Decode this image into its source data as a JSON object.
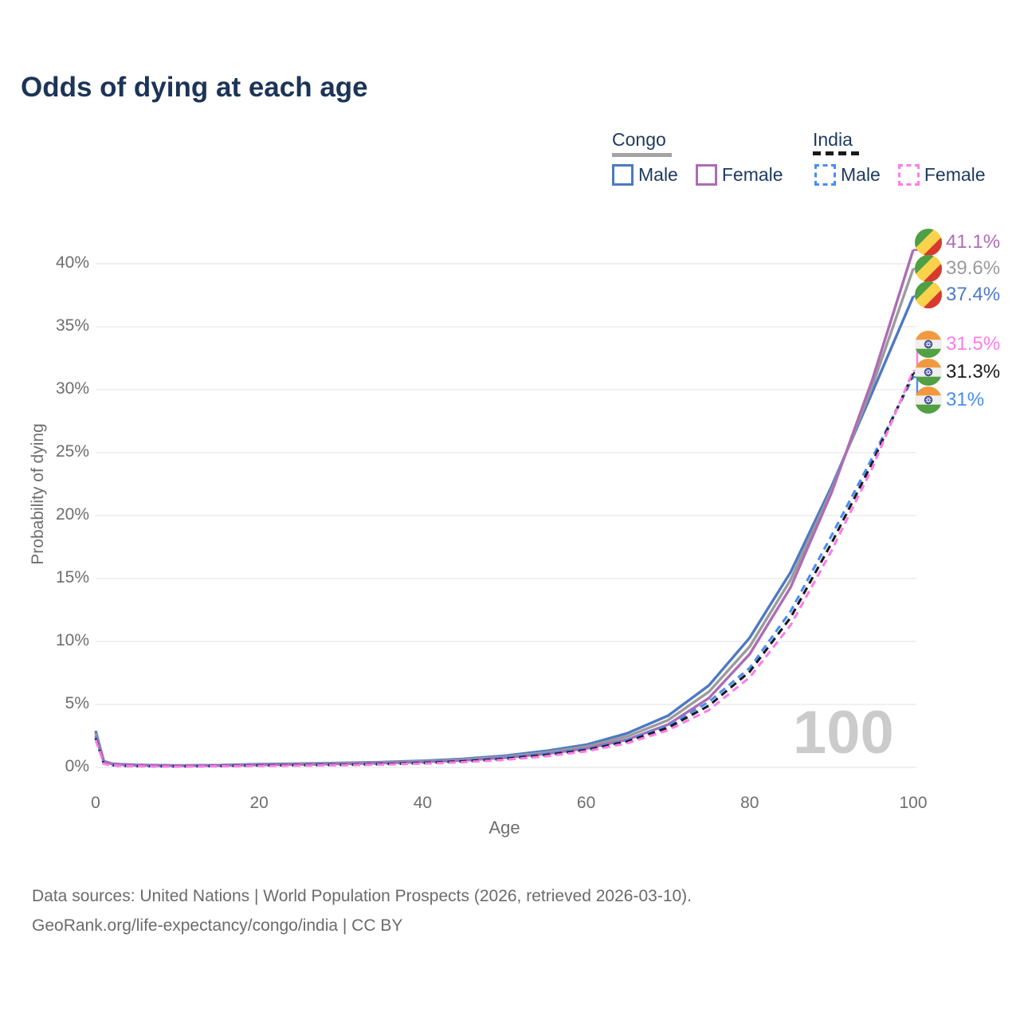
{
  "title": "Odds of dying at each age",
  "watermark": "100",
  "legend": {
    "congo": {
      "label": "Congo",
      "male": "Male",
      "female": "Female"
    },
    "india": {
      "label": "India",
      "male": "Male",
      "female": "Female"
    }
  },
  "footer": {
    "line1": "Data sources: United Nations | World Population Prospects (2026, retrieved 2026-03-10).",
    "line2": "GeoRank.org/life-expectancy/congo/india | CC BY"
  },
  "colors": {
    "congo_male": "#4d79c3",
    "congo_female": "#ad6cb5",
    "congo_both": "#9b9b9b",
    "india_male": "#4a8cf2",
    "india_female": "#ff7be8",
    "india_both": "#1a1a1a",
    "title_text": "#1c3457",
    "axis_text": "#6e6e6e",
    "gridline": "#ececec",
    "watermark": "#cbcbcb"
  },
  "chart_data": {
    "type": "line",
    "title": "Odds of dying at each age",
    "xlabel": "Age",
    "ylabel": "Probability of dying",
    "xlim": [
      0,
      100
    ],
    "ylim": [
      0,
      40
    ],
    "xticks": [
      0,
      20,
      40,
      60,
      80,
      100
    ],
    "xticklabels": [
      "0",
      "20",
      "40",
      "60",
      "80",
      "100"
    ],
    "yticks": [
      0,
      5,
      10,
      15,
      20,
      25,
      30,
      35,
      40
    ],
    "yticklabels": [
      "0%",
      "5%",
      "10%",
      "15%",
      "20%",
      "25%",
      "30%",
      "35%",
      "40%"
    ],
    "grid": "horizontal-only",
    "legend_position": "top-right",
    "x": [
      0,
      1,
      2,
      3,
      5,
      10,
      15,
      20,
      25,
      30,
      35,
      40,
      45,
      50,
      55,
      60,
      65,
      70,
      75,
      80,
      85,
      90,
      95,
      100
    ],
    "series": [
      {
        "name": "Congo Male",
        "country": "Congo",
        "sex": "male",
        "dash": "solid",
        "color": "#4d79c3",
        "end_label": "37.4%",
        "values": [
          2.9,
          0.5,
          0.3,
          0.25,
          0.2,
          0.15,
          0.18,
          0.25,
          0.3,
          0.35,
          0.42,
          0.52,
          0.68,
          0.92,
          1.3,
          1.8,
          2.7,
          4.1,
          6.5,
          10.3,
          15.5,
          22.3,
          29.8,
          37.4
        ]
      },
      {
        "name": "Congo Both sexes",
        "country": "Congo",
        "sex": "both",
        "dash": "solid",
        "color": "#9b9b9b",
        "end_label": "39.6%",
        "values": [
          2.7,
          0.48,
          0.29,
          0.24,
          0.18,
          0.14,
          0.17,
          0.22,
          0.27,
          0.32,
          0.38,
          0.47,
          0.62,
          0.84,
          1.18,
          1.65,
          2.45,
          3.75,
          6.0,
          9.6,
          14.9,
          22.0,
          30.3,
          39.6
        ]
      },
      {
        "name": "Congo Female",
        "country": "Congo",
        "sex": "female",
        "dash": "solid",
        "color": "#ad6cb5",
        "end_label": "41.1%",
        "values": [
          2.5,
          0.45,
          0.28,
          0.22,
          0.17,
          0.13,
          0.15,
          0.2,
          0.24,
          0.28,
          0.34,
          0.43,
          0.56,
          0.77,
          1.07,
          1.5,
          2.2,
          3.4,
          5.5,
          9.0,
          14.3,
          21.8,
          30.8,
          41.1
        ]
      },
      {
        "name": "India Male",
        "country": "India",
        "sex": "male",
        "dash": "dashed",
        "color": "#4a8cf2",
        "end_label": "31%",
        "values": [
          2.4,
          0.3,
          0.18,
          0.14,
          0.1,
          0.08,
          0.12,
          0.17,
          0.2,
          0.24,
          0.3,
          0.4,
          0.54,
          0.75,
          1.08,
          1.45,
          2.15,
          3.3,
          5.2,
          7.9,
          12.4,
          18.4,
          24.6,
          31.0
        ]
      },
      {
        "name": "India Both sexes",
        "country": "India",
        "sex": "both",
        "dash": "dashed",
        "color": "#1a1a1a",
        "end_label": "31.3%",
        "values": [
          2.3,
          0.29,
          0.18,
          0.13,
          0.1,
          0.08,
          0.1,
          0.15,
          0.17,
          0.2,
          0.26,
          0.35,
          0.48,
          0.68,
          0.98,
          1.38,
          2.05,
          3.15,
          4.9,
          7.6,
          11.9,
          17.8,
          24.2,
          31.3
        ]
      },
      {
        "name": "India Female",
        "country": "India",
        "sex": "female",
        "dash": "dashed",
        "color": "#ff7be8",
        "end_label": "31.5%",
        "values": [
          2.2,
          0.28,
          0.17,
          0.13,
          0.09,
          0.07,
          0.09,
          0.12,
          0.14,
          0.17,
          0.22,
          0.3,
          0.42,
          0.6,
          0.88,
          1.28,
          1.92,
          2.95,
          4.55,
          7.15,
          11.3,
          17.2,
          23.8,
          31.5
        ]
      }
    ]
  }
}
